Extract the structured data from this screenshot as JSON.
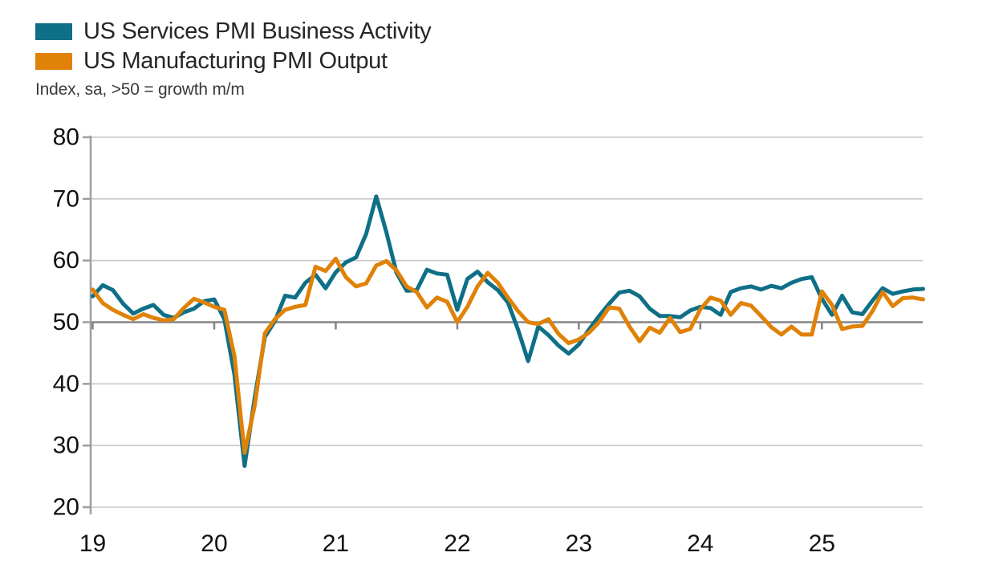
{
  "legend": {
    "items": [
      {
        "label": "US Services PMI Business Activity",
        "color": "#0e6f87"
      },
      {
        "label": "US Manufacturing PMI Output",
        "color": "#e08207"
      }
    ]
  },
  "subtitle": "Index, sa, >50 = growth m/m",
  "chart_data": {
    "type": "line",
    "x_unit": "month",
    "x_start": "2019-01",
    "x_end": "2025-11",
    "months_per_x_tick": 12,
    "x_tick_labels": [
      "19",
      "20",
      "21",
      "22",
      "23",
      "24",
      "25"
    ],
    "ylim": [
      20,
      80
    ],
    "y_ticks": [
      20,
      30,
      40,
      50,
      60,
      70,
      80
    ],
    "baseline_value": 50,
    "grid": {
      "show": true,
      "color": "#c9c9c9",
      "baseline_color": "#858585",
      "axis_color": "#9e9e9e",
      "label_color": "#111111"
    },
    "legend_position": "top-left",
    "series": [
      {
        "name": "US Services PMI Business Activity",
        "color": "#0e6f87",
        "values": [
          54.2,
          56.0,
          55.2,
          53.0,
          51.4,
          52.2,
          52.8,
          51.2,
          50.7,
          51.6,
          52.2,
          53.4,
          53.7,
          50.5,
          41.5,
          26.7,
          37.8,
          47.6,
          50.2,
          54.3,
          54.0,
          56.4,
          57.7,
          55.5,
          58.1,
          59.7,
          60.5,
          64.3,
          70.4,
          64.6,
          58.0,
          55.1,
          55.2,
          58.5,
          57.9,
          57.7,
          52.0,
          57.0,
          58.2,
          56.5,
          55.2,
          53.2,
          48.8,
          43.7,
          49.3,
          47.9,
          46.2,
          44.9,
          46.4,
          48.8,
          51.0,
          53.0,
          54.8,
          55.1,
          54.2,
          52.2,
          51.0,
          51.0,
          50.8,
          51.9,
          52.5,
          52.3,
          51.2,
          54.9,
          55.5,
          55.8,
          55.3,
          55.9,
          55.5,
          56.4,
          57.0,
          57.3,
          53.8,
          51.2,
          54.3,
          51.6,
          51.3,
          53.5,
          55.5,
          54.6,
          55.0,
          55.3,
          55.4
        ]
      },
      {
        "name": "US Manufacturing PMI Output",
        "color": "#e08207",
        "values": [
          55.3,
          53.1,
          52.0,
          51.2,
          50.5,
          51.3,
          50.7,
          50.3,
          50.5,
          52.3,
          53.8,
          53.2,
          52.5,
          52.0,
          44.5,
          28.8,
          36.5,
          48.2,
          50.5,
          52.0,
          52.5,
          52.8,
          59.0,
          58.3,
          60.3,
          57.3,
          55.8,
          56.3,
          59.2,
          59.9,
          58.4,
          55.8,
          54.9,
          52.4,
          54.0,
          53.3,
          50.0,
          52.5,
          55.8,
          58.0,
          56.4,
          54.0,
          51.8,
          50.0,
          49.7,
          50.5,
          48.1,
          46.6,
          47.2,
          48.3,
          50.0,
          52.4,
          52.2,
          49.3,
          46.9,
          49.1,
          48.3,
          50.7,
          48.4,
          48.9,
          52.1,
          54.0,
          53.5,
          51.2,
          53.1,
          52.7,
          51.0,
          49.2,
          48.0,
          49.3,
          48.0,
          48.0,
          55.0,
          52.8,
          48.9,
          49.3,
          49.4,
          51.8,
          54.9,
          52.6,
          53.9,
          54.0,
          53.7
        ]
      }
    ]
  }
}
